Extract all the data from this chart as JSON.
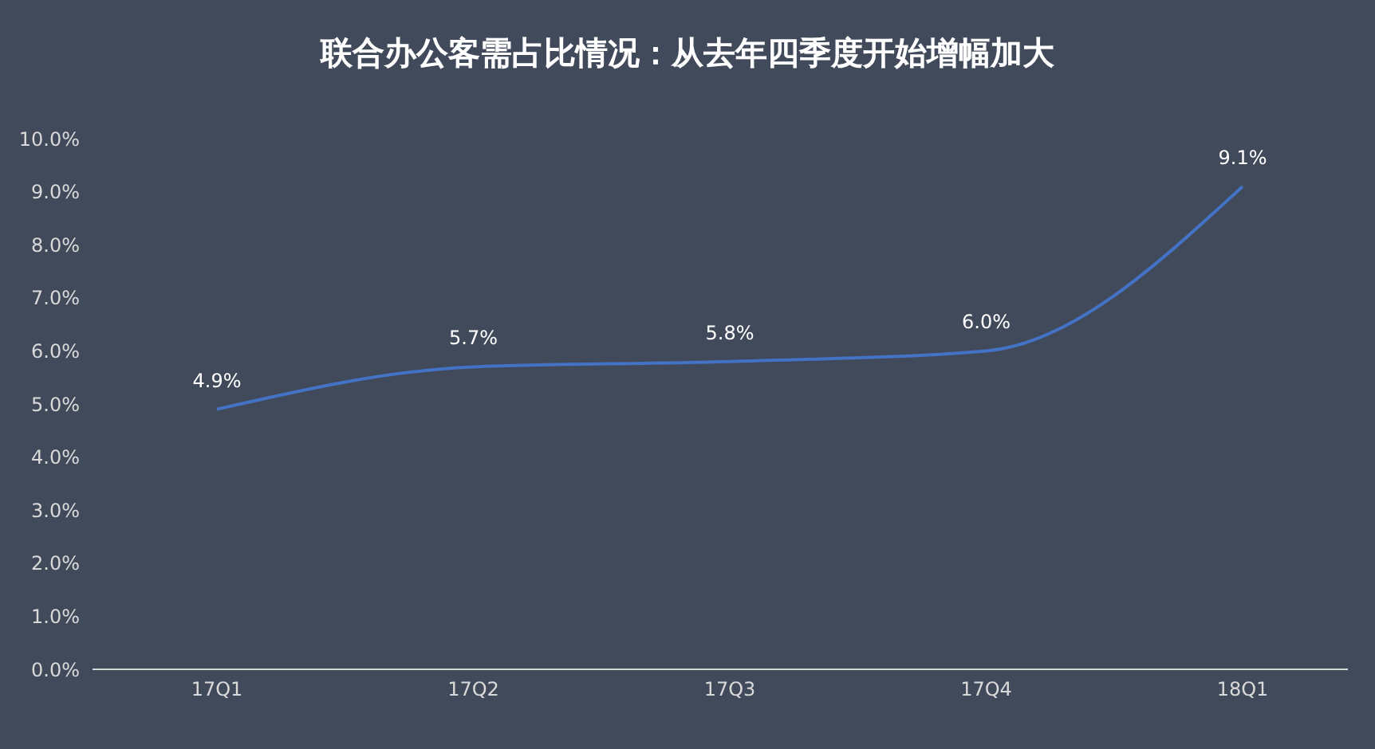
{
  "chart_data": {
    "type": "line",
    "title": "联合办公客需占比情况：从去年四季度开始增幅加大",
    "categories": [
      "17Q1",
      "17Q2",
      "17Q3",
      "17Q4",
      "18Q1"
    ],
    "series": [
      {
        "color": "#4472c4",
        "values": [
          4.9,
          5.7,
          5.8,
          6.0,
          9.1
        ],
        "value_labels": [
          "4.9%",
          "5.7%",
          "5.8%",
          "6.0%",
          "9.1%"
        ]
      }
    ],
    "ylim": [
      0,
      10
    ],
    "yticks": [
      {
        "value": 0,
        "label": "0.0%"
      },
      {
        "value": 1,
        "label": "1.0%"
      },
      {
        "value": 2,
        "label": "2.0%"
      },
      {
        "value": 3,
        "label": "3.0%"
      },
      {
        "value": 4,
        "label": "4.0%"
      },
      {
        "value": 5,
        "label": "5.0%"
      },
      {
        "value": 6,
        "label": "6.0%"
      },
      {
        "value": 7,
        "label": "7.0%"
      },
      {
        "value": 8,
        "label": "8.0%"
      },
      {
        "value": 9,
        "label": "9.0%"
      },
      {
        "value": 10,
        "label": "10.0%"
      }
    ],
    "grid": false,
    "legend": false,
    "marker": "none",
    "line_style": "solid"
  }
}
